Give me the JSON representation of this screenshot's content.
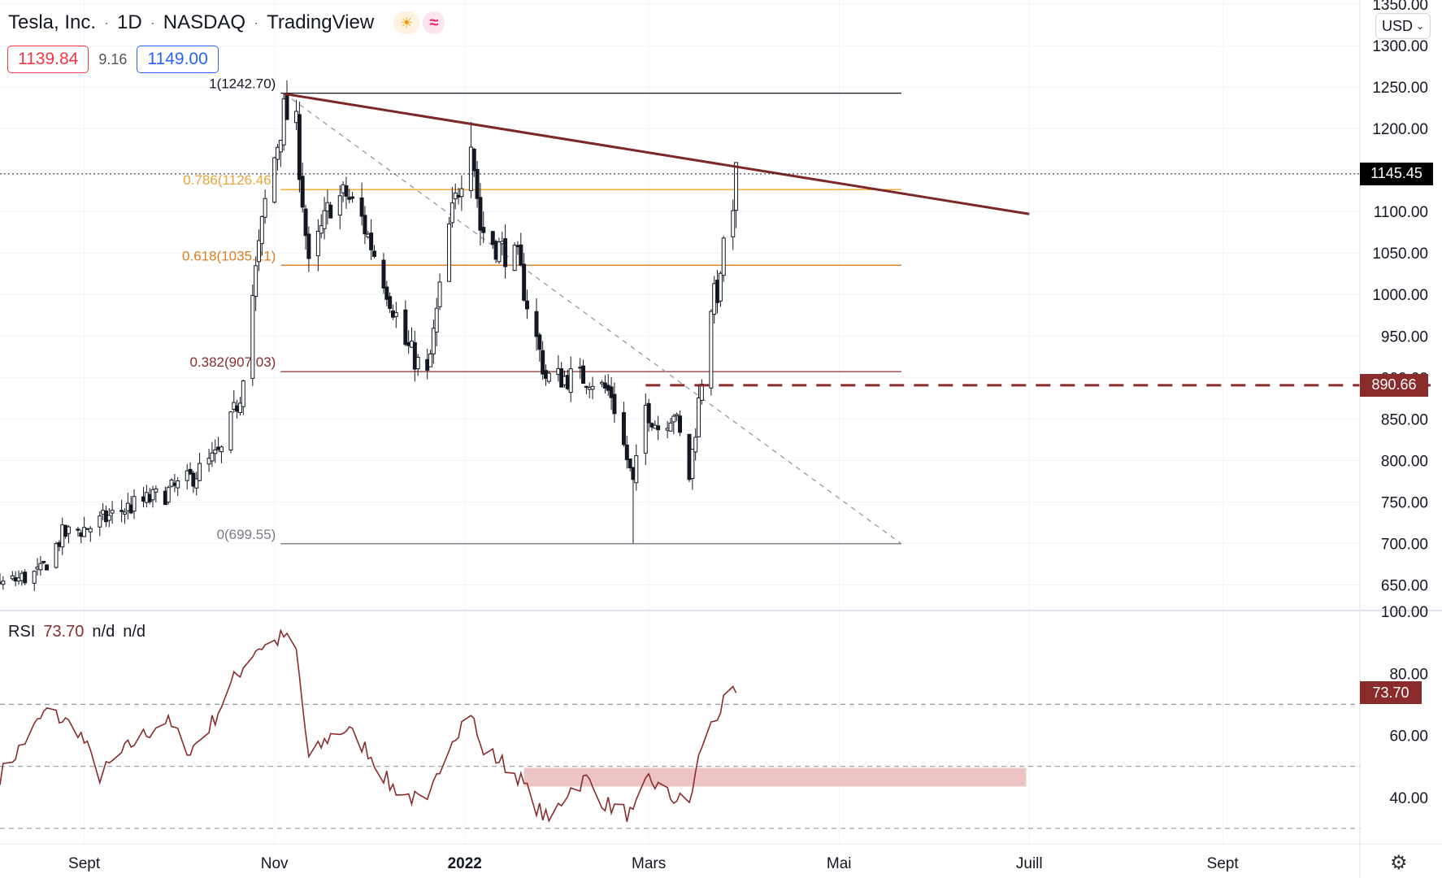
{
  "header": {
    "symbol": "Tesla, Inc.",
    "interval": "1D",
    "exchange": "NASDAQ",
    "source": "TradingView",
    "bid": "1139.84",
    "spread": "9.16",
    "ask": "1149.00",
    "currency": "USD"
  },
  "rsi_legend": {
    "label": "RSI",
    "value": "73.70",
    "na1": "n/d",
    "na2": "n/d"
  },
  "price_tags": {
    "last": "1145.45",
    "level": "890.66",
    "rsi": "73.70"
  },
  "colors": {
    "candle": "#131722",
    "trend": "#7b2828",
    "fib_orange": "#f5a623",
    "fib_orange_dark": "#e07b20",
    "fib_dark_red": "#8b2c2c",
    "rsi": "#8b2c2c",
    "rsi_zone": "#ecc4c4",
    "level": "#8b2c2c"
  },
  "chart_data": {
    "type": "candlestick",
    "price_axis": {
      "range": [
        620,
        1355
      ],
      "ticks": [
        "1350.00",
        "1300.00",
        "1250.00",
        "1200.00",
        "1150.00",
        "1100.00",
        "1050.00",
        "1000.00",
        "950.00",
        "900.00",
        "850.00",
        "800.00",
        "750.00",
        "700.00",
        "650.00"
      ]
    },
    "rsi_axis": {
      "range": [
        25,
        100
      ],
      "ticks": [
        "100.00",
        "80.00",
        "60.00",
        "40.00"
      ],
      "bands": [
        30,
        50,
        70
      ]
    },
    "x_axis": {
      "start": "2021-08-05",
      "end": "2022-10-15",
      "ticks": [
        {
          "label": "Sept",
          "date": "2021-09-01",
          "bold": false
        },
        {
          "label": "Nov",
          "date": "2021-11-01",
          "bold": false
        },
        {
          "label": "2022",
          "date": "2022-01-01",
          "bold": true
        },
        {
          "label": "Mars",
          "date": "2022-03-01",
          "bold": false
        },
        {
          "label": "Mai",
          "date": "2022-05-01",
          "bold": false
        },
        {
          "label": "Juill",
          "date": "2022-07-01",
          "bold": false
        },
        {
          "label": "Sept",
          "date": "2022-09-01",
          "bold": false
        }
      ]
    },
    "candles_anchor": {
      "start": "2021-08-05",
      "end": "2022-03-29"
    },
    "close_anchors": [
      [
        "2021-08-05",
        650
      ],
      [
        "2021-08-18",
        665
      ],
      [
        "2021-08-25",
        710
      ],
      [
        "2021-09-03",
        720
      ],
      [
        "2021-09-13",
        740
      ],
      [
        "2021-09-27",
        760
      ],
      [
        "2021-10-04",
        775
      ],
      [
        "2021-10-15",
        810
      ],
      [
        "2021-10-21",
        880
      ],
      [
        "2021-10-25",
        1000
      ],
      [
        "2021-10-29",
        1110
      ],
      [
        "2021-11-04",
        1220
      ],
      [
        "2021-11-08",
        1200
      ],
      [
        "2021-11-12",
        1030
      ],
      [
        "2021-11-19",
        1110
      ],
      [
        "2021-11-24",
        1120
      ],
      [
        "2021-11-29",
        1090
      ],
      [
        "2021-12-06",
        1020
      ],
      [
        "2021-12-13",
        940
      ],
      [
        "2021-12-20",
        900
      ],
      [
        "2021-12-27",
        1080
      ],
      [
        "2022-01-03",
        1195
      ],
      [
        "2022-01-06",
        1080
      ],
      [
        "2022-01-11",
        1060
      ],
      [
        "2022-01-18",
        1040
      ],
      [
        "2022-01-21",
        990
      ],
      [
        "2022-01-27",
        900
      ],
      [
        "2022-02-03",
        900
      ],
      [
        "2022-02-10",
        900
      ],
      [
        "2022-02-17",
        880
      ],
      [
        "2022-02-24",
        770
      ],
      [
        "2022-02-28",
        865
      ],
      [
        "2022-03-04",
        840
      ],
      [
        "2022-03-09",
        860
      ],
      [
        "2022-03-14",
        780
      ],
      [
        "2022-03-18",
        900
      ],
      [
        "2022-03-21",
        990
      ],
      [
        "2022-03-24",
        1010
      ],
      [
        "2022-03-25",
        1070
      ],
      [
        "2022-03-28",
        1090
      ],
      [
        "2022-03-29",
        1145
      ]
    ],
    "special_candles": [
      {
        "date": "2021-11-04",
        "high": 1242.7
      },
      {
        "date": "2022-01-03",
        "high": 1208
      },
      {
        "date": "2022-02-24",
        "low": 700
      },
      {
        "date": "2022-03-29",
        "high": 1152,
        "low": 1080
      }
    ],
    "fibonacci": [
      {
        "ratio": 1,
        "price": 1242.7,
        "label": "1(1242.70)"
      },
      {
        "ratio": 0.786,
        "price": 1126.46,
        "label": "0.786(1126.46)"
      },
      {
        "ratio": 0.618,
        "price": 1035.21,
        "label": "0.618(1035.21)"
      },
      {
        "ratio": 0.382,
        "price": 907.03,
        "label": "0.382(907.03)"
      },
      {
        "ratio": 0,
        "price": 699.55,
        "label": "0(699.55)"
      }
    ],
    "fib_span": {
      "from": "2021-11-03",
      "to": "2022-05-21"
    },
    "trendline": {
      "from": [
        "2021-11-04",
        1242
      ],
      "to": [
        "2022-07-01",
        1097
      ]
    },
    "fib_diagonal": {
      "from": [
        "2021-11-04",
        1242.7
      ],
      "to": [
        "2022-05-21",
        699.55
      ]
    },
    "last_price": 1145.45,
    "level": {
      "price": 890.66,
      "from": "2022-02-28"
    },
    "rsi": {
      "value": 73.7,
      "anchors": [
        [
          "2021-08-05",
          47
        ],
        [
          "2021-08-20",
          68
        ],
        [
          "2021-08-30",
          62
        ],
        [
          "2021-09-06",
          47
        ],
        [
          "2021-09-16",
          57
        ],
        [
          "2021-09-27",
          65
        ],
        [
          "2021-10-05",
          55
        ],
        [
          "2021-10-12",
          64
        ],
        [
          "2021-10-19",
          78
        ],
        [
          "2021-10-26",
          88
        ],
        [
          "2021-11-01",
          90
        ],
        [
          "2021-11-04",
          92
        ],
        [
          "2021-11-08",
          87
        ],
        [
          "2021-11-12",
          52
        ],
        [
          "2021-11-19",
          60
        ],
        [
          "2021-11-24",
          62
        ],
        [
          "2021-12-01",
          55
        ],
        [
          "2021-12-08",
          44
        ],
        [
          "2021-12-15",
          40
        ],
        [
          "2021-12-20",
          37
        ],
        [
          "2021-12-27",
          58
        ],
        [
          "2022-01-03",
          68
        ],
        [
          "2022-01-06",
          56
        ],
        [
          "2022-01-12",
          52
        ],
        [
          "2022-01-18",
          47
        ],
        [
          "2022-01-24",
          37
        ],
        [
          "2022-01-28",
          32
        ],
        [
          "2022-02-03",
          42
        ],
        [
          "2022-02-09",
          46
        ],
        [
          "2022-02-15",
          38
        ],
        [
          "2022-02-24",
          34
        ],
        [
          "2022-03-01",
          46
        ],
        [
          "2022-03-08",
          40
        ],
        [
          "2022-03-14",
          38
        ],
        [
          "2022-03-18",
          57
        ],
        [
          "2022-03-22",
          65
        ],
        [
          "2022-03-25",
          70
        ],
        [
          "2022-03-29",
          73.7
        ]
      ]
    },
    "rsi_zone": {
      "from": "2022-01-20",
      "to": "2022-06-30",
      "low": 43.5,
      "high": 49.5
    }
  }
}
